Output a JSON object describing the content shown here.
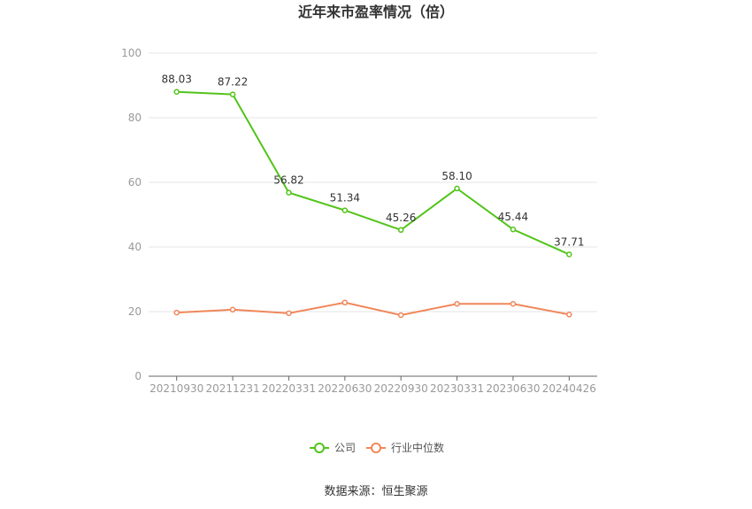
{
  "chart_data": {
    "type": "line",
    "title": "近年来市盈率情况（倍）",
    "categories": [
      "20210930",
      "20211231",
      "20220331",
      "20220630",
      "20220930",
      "20230331",
      "20230630",
      "20240426"
    ],
    "ylim": [
      0,
      100
    ],
    "yticks": [
      0,
      20,
      40,
      60,
      80,
      100
    ],
    "grid": true,
    "legend_position": "bottom",
    "series": [
      {
        "name": "公司",
        "color": "#52c41a",
        "values": [
          88.03,
          87.22,
          56.82,
          51.34,
          45.26,
          58.1,
          45.44,
          37.71
        ],
        "labels": [
          "88.03",
          "87.22",
          "56.82",
          "51.34",
          "45.26",
          "58.10",
          "45.44",
          "37.71"
        ]
      },
      {
        "name": "行业中位数",
        "color": "#f0875a",
        "values": [
          19.7,
          20.6,
          19.5,
          22.8,
          18.9,
          22.4,
          22.4,
          19.1
        ]
      }
    ]
  },
  "source": "数据来源：恒生聚源"
}
